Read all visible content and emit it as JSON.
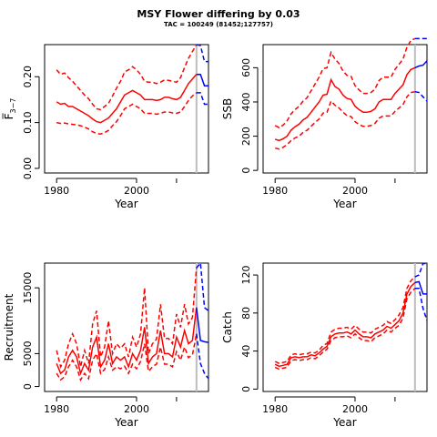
{
  "title": "MSY Flower differing by 0.03",
  "subtitle": "TAC = 100249 (81452;127757)",
  "colors": {
    "historical": "#ff0000",
    "forecast": "#0000ff",
    "marker": "#bebebe",
    "axis": "#000000"
  },
  "chart_data": [
    {
      "type": "line",
      "id": "fbar",
      "xlabel": "Year",
      "ylabel": "F̅",
      "ylabel_sub": "3−7",
      "xlim": [
        1977,
        2018
      ],
      "ylim": [
        -0.01,
        0.27
      ],
      "xticks": [
        1980,
        2000
      ],
      "yticks": [
        0.0,
        0.1,
        0.2
      ],
      "ytick_labels": [
        "0.00",
        "0.10",
        "0.20"
      ],
      "marker_year": 2015,
      "historical": {
        "x": [
          1980,
          1981,
          1982,
          1983,
          1984,
          1985,
          1986,
          1987,
          1988,
          1989,
          1990,
          1991,
          1992,
          1993,
          1994,
          1995,
          1996,
          1997,
          1998,
          1999,
          2000,
          2001,
          2002,
          2003,
          2004,
          2005,
          2006,
          2007,
          2008,
          2009,
          2010,
          2011,
          2012,
          2013,
          2014,
          2015
        ],
        "mid": [
          0.145,
          0.14,
          0.142,
          0.135,
          0.135,
          0.13,
          0.125,
          0.12,
          0.115,
          0.108,
          0.102,
          0.1,
          0.105,
          0.11,
          0.12,
          0.13,
          0.145,
          0.16,
          0.165,
          0.17,
          0.165,
          0.16,
          0.15,
          0.15,
          0.15,
          0.148,
          0.15,
          0.155,
          0.155,
          0.152,
          0.15,
          0.155,
          0.17,
          0.185,
          0.195,
          0.205
        ],
        "lower": [
          0.1,
          0.098,
          0.099,
          0.097,
          0.096,
          0.095,
          0.093,
          0.09,
          0.086,
          0.08,
          0.076,
          0.075,
          0.078,
          0.083,
          0.093,
          0.102,
          0.115,
          0.13,
          0.135,
          0.14,
          0.135,
          0.13,
          0.12,
          0.12,
          0.12,
          0.118,
          0.12,
          0.123,
          0.123,
          0.121,
          0.12,
          0.123,
          0.135,
          0.148,
          0.158,
          0.165
        ],
        "upper": [
          0.215,
          0.205,
          0.208,
          0.198,
          0.19,
          0.18,
          0.17,
          0.16,
          0.152,
          0.14,
          0.13,
          0.128,
          0.135,
          0.142,
          0.158,
          0.175,
          0.19,
          0.21,
          0.215,
          0.222,
          0.215,
          0.205,
          0.19,
          0.188,
          0.188,
          0.185,
          0.188,
          0.193,
          0.192,
          0.19,
          0.188,
          0.198,
          0.22,
          0.24,
          0.255,
          0.27
        ]
      },
      "forecast": {
        "x": [
          2015,
          2016,
          2017,
          2018
        ],
        "mid": [
          0.205,
          0.205,
          0.18,
          0.18
        ],
        "lower": [
          0.165,
          0.165,
          0.14,
          0.14
        ],
        "upper": [
          0.27,
          0.268,
          0.233,
          0.233
        ]
      }
    },
    {
      "type": "line",
      "id": "ssb",
      "xlabel": "Year",
      "ylabel": "SSB",
      "xlim": [
        1977,
        2018
      ],
      "ylim": [
        -15,
        735
      ],
      "xticks": [
        1980,
        2000
      ],
      "yticks": [
        0,
        200,
        400,
        600
      ],
      "ytick_labels": [
        "0",
        "200",
        "400",
        "600"
      ],
      "marker_year": 2015,
      "historical": {
        "x": [
          1980,
          1981,
          1982,
          1983,
          1984,
          1985,
          1986,
          1987,
          1988,
          1989,
          1990,
          1991,
          1992,
          1993,
          1994,
          1995,
          1996,
          1997,
          1998,
          1999,
          2000,
          2001,
          2002,
          2003,
          2004,
          2005,
          2006,
          2007,
          2008,
          2009,
          2010,
          2011,
          2012,
          2013,
          2014,
          2015
        ],
        "mid": [
          182,
          175,
          185,
          200,
          235,
          255,
          270,
          295,
          310,
          340,
          370,
          400,
          440,
          445,
          530,
          490,
          475,
          440,
          420,
          415,
          375,
          355,
          340,
          340,
          345,
          360,
          400,
          415,
          415,
          415,
          450,
          475,
          500,
          560,
          590,
          600
        ],
        "lower": [
          130,
          125,
          135,
          150,
          175,
          190,
          200,
          222,
          235,
          258,
          280,
          300,
          335,
          340,
          405,
          380,
          365,
          340,
          320,
          315,
          285,
          268,
          258,
          258,
          262,
          275,
          305,
          318,
          318,
          318,
          345,
          365,
          385,
          430,
          455,
          460
        ],
        "upper": [
          262,
          250,
          265,
          290,
          330,
          355,
          375,
          405,
          425,
          465,
          505,
          545,
          595,
          600,
          690,
          650,
          625,
          580,
          555,
          550,
          495,
          470,
          450,
          450,
          455,
          475,
          525,
          545,
          545,
          545,
          590,
          620,
          650,
          720,
          760,
          770
        ]
      },
      "forecast": {
        "x": [
          2015,
          2016,
          2017,
          2018
        ],
        "mid": [
          600,
          610,
          615,
          640
        ],
        "lower": [
          460,
          455,
          430,
          405
        ],
        "upper": [
          770,
          770,
          770,
          770
        ]
      }
    },
    {
      "type": "line",
      "id": "recruitment",
      "xlabel": "Year",
      "ylabel": "Recruitment",
      "xlim": [
        1977,
        2018
      ],
      "ylim": [
        -750,
        18750
      ],
      "xticks": [
        1980,
        2000
      ],
      "yticks": [
        0,
        5000,
        15000
      ],
      "ytick_labels": [
        "0",
        "5000",
        "15000"
      ],
      "marker_year": 2015,
      "historical": {
        "x": [
          1980,
          1981,
          1982,
          1983,
          1984,
          1985,
          1986,
          1987,
          1988,
          1989,
          1990,
          1991,
          1992,
          1993,
          1994,
          1995,
          1996,
          1997,
          1998,
          1999,
          2000,
          2001,
          2002,
          2003,
          2004,
          2005,
          2006,
          2007,
          2008,
          2009,
          2010,
          2011,
          2012,
          2013,
          2014,
          2015
        ],
        "mid": [
          3500,
          2000,
          2500,
          4500,
          5500,
          4500,
          2000,
          3500,
          2500,
          6000,
          7500,
          3000,
          4000,
          6500,
          3500,
          4500,
          4000,
          4500,
          3000,
          5000,
          4000,
          5500,
          9000,
          3500,
          4500,
          5000,
          8500,
          5000,
          5000,
          4500,
          7500,
          6000,
          8500,
          6500,
          7000,
          12000
        ],
        "lower": [
          2000,
          1000,
          1500,
          3000,
          4000,
          3000,
          1000,
          2000,
          1200,
          4000,
          5000,
          2000,
          2600,
          4500,
          2500,
          3000,
          2700,
          3100,
          2000,
          3400,
          2700,
          3800,
          6500,
          2300,
          3000,
          3400,
          6000,
          3400,
          3400,
          3000,
          5300,
          4000,
          6000,
          4400,
          4800,
          8000
        ],
        "upper": [
          5500,
          3000,
          4000,
          6500,
          8000,
          6500,
          3000,
          5500,
          3500,
          9500,
          11500,
          4500,
          6000,
          10000,
          5000,
          6500,
          5800,
          6500,
          4500,
          7500,
          6000,
          8000,
          15000,
          5000,
          6500,
          7200,
          12500,
          7300,
          7300,
          6500,
          11000,
          9000,
          12500,
          9500,
          10500,
          18000
        ]
      },
      "forecast": {
        "x": [
          2015,
          2016,
          2017,
          2018
        ],
        "mid": [
          12000,
          7000,
          6800,
          6700
        ],
        "lower": [
          8000,
          3500,
          2000,
          1200
        ],
        "upper": [
          18000,
          18750,
          12000,
          11500
        ]
      }
    },
    {
      "type": "line",
      "id": "catch",
      "xlabel": "Year",
      "ylabel": "Catch",
      "xlim": [
        1977,
        2018
      ],
      "ylim": [
        -2.5,
        132.5
      ],
      "xticks": [
        1980,
        2000
      ],
      "yticks": [
        0,
        40,
        80,
        120
      ],
      "ytick_labels": [
        "0",
        "40",
        "80",
        "120"
      ],
      "marker_year": 2015,
      "historical": {
        "x": [
          1980,
          1981,
          1982,
          1983,
          1984,
          1985,
          1986,
          1987,
          1988,
          1989,
          1990,
          1991,
          1992,
          1993,
          1994,
          1995,
          1996,
          1997,
          1998,
          1999,
          2000,
          2001,
          2002,
          2003,
          2004,
          2005,
          2006,
          2007,
          2008,
          2009,
          2010,
          2011,
          2012,
          2013,
          2014,
          2015
        ],
        "mid": [
          26,
          24,
          25,
          26,
          33,
          34,
          33,
          34,
          34,
          36,
          35,
          38,
          42,
          45,
          55,
          58,
          59,
          59,
          60,
          58,
          62,
          58,
          55,
          55,
          54,
          58,
          60,
          62,
          66,
          64,
          68,
          72,
          80,
          100,
          108,
          112
        ],
        "lower": [
          23,
          21,
          22,
          23,
          30,
          31,
          30,
          31,
          31,
          33,
          32,
          35,
          39,
          42,
          51,
          54,
          55,
          55,
          56,
          54,
          58,
          54,
          51,
          51,
          50,
          54,
          56,
          58,
          62,
          60,
          64,
          67,
          75,
          95,
          102,
          106
        ],
        "upper": [
          29,
          27,
          28,
          29,
          36,
          37,
          36,
          37,
          37,
          39,
          38,
          41,
          46,
          48,
          60,
          63,
          64,
          64,
          65,
          63,
          67,
          63,
          60,
          60,
          59,
          63,
          65,
          67,
          71,
          69,
          73,
          78,
          86,
          106,
          114,
          118
        ]
      },
      "forecast": {
        "x": [
          2015,
          2016,
          2017,
          2018
        ],
        "mid": [
          112,
          113,
          100,
          100
        ],
        "lower": [
          106,
          106,
          85,
          72
        ],
        "upper": [
          118,
          120,
          132,
          132
        ]
      }
    }
  ]
}
